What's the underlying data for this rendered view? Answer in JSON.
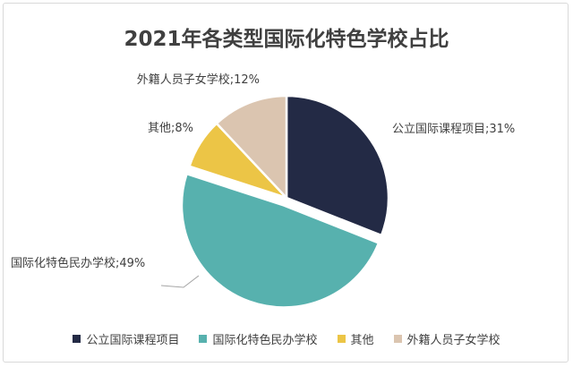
{
  "chart_data": {
    "type": "pie",
    "title": "2021年各类型国际化特色学校占比",
    "slices": [
      {
        "name": "公立国际课程项目",
        "value": 31,
        "label": "公立国际课程项目;31%",
        "color": "#232a45",
        "exploded": false
      },
      {
        "name": "国际化特色民办学校",
        "value": 49,
        "label": "国际化特色民办学校;49%",
        "color": "#57b1ae",
        "exploded": true
      },
      {
        "name": "其他",
        "value": 8,
        "label": "其他;8%",
        "color": "#ecc546",
        "exploded": false
      },
      {
        "name": "外籍人员子女学校",
        "value": 12,
        "label": "外籍人员子女学校;12%",
        "color": "#dbc5b0",
        "exploded": false
      }
    ],
    "start_angle_deg": 0,
    "direction": "clockwise",
    "legend_position": "bottom"
  }
}
